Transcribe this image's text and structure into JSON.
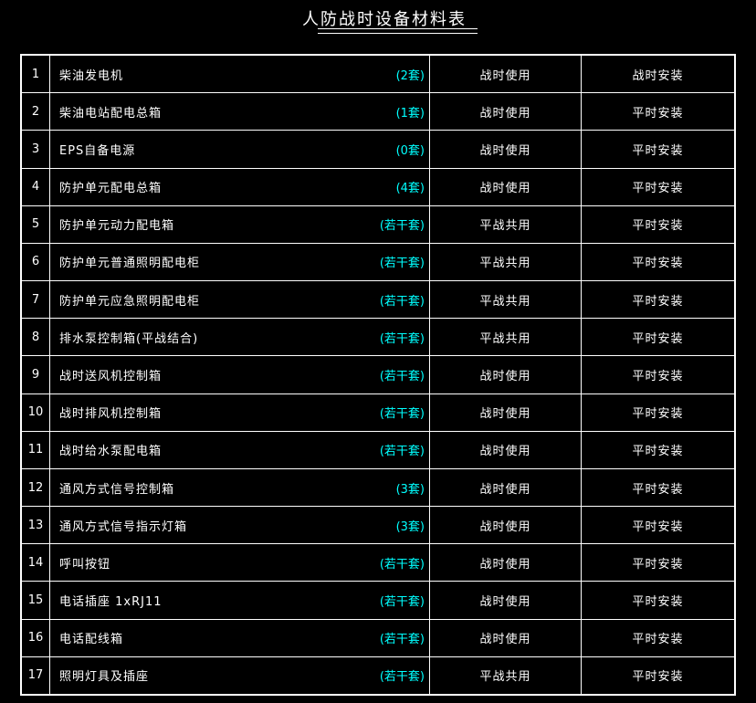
{
  "title": "人防战时设备材料表",
  "colors": {
    "background": "#000000",
    "gridline": "#ffffff",
    "text": "#ffffff",
    "quantity_accent": "#00ffff"
  },
  "table": {
    "rows": [
      {
        "no": "1",
        "name": "柴油发电机",
        "qty": "(2套)",
        "usage": "战时使用",
        "install": "战时安装"
      },
      {
        "no": "2",
        "name": "柴油电站配电总箱",
        "qty": "(1套)",
        "usage": "战时使用",
        "install": "平时安装"
      },
      {
        "no": "3",
        "name": "EPS自备电源",
        "qty": "(0套)",
        "usage": "战时使用",
        "install": "平时安装"
      },
      {
        "no": "4",
        "name": "防护单元配电总箱",
        "qty": "(4套)",
        "usage": "战时使用",
        "install": "平时安装"
      },
      {
        "no": "5",
        "name": "防护单元动力配电箱",
        "qty": "(若干套)",
        "usage": "平战共用",
        "install": "平时安装"
      },
      {
        "no": "6",
        "name": "防护单元普通照明配电柜",
        "qty": "(若干套)",
        "usage": "平战共用",
        "install": "平时安装"
      },
      {
        "no": "7",
        "name": "防护单元应急照明配电柜",
        "qty": "(若干套)",
        "usage": "平战共用",
        "install": "平时安装"
      },
      {
        "no": "8",
        "name": "排水泵控制箱(平战结合)",
        "qty": "(若干套)",
        "usage": "平战共用",
        "install": "平时安装"
      },
      {
        "no": "9",
        "name": "战时送风机控制箱",
        "qty": "(若干套)",
        "usage": "战时使用",
        "install": "平时安装"
      },
      {
        "no": "10",
        "name": "战时排风机控制箱",
        "qty": "(若干套)",
        "usage": "战时使用",
        "install": "平时安装"
      },
      {
        "no": "11",
        "name": "战时给水泵配电箱",
        "qty": "(若干套)",
        "usage": "战时使用",
        "install": "平时安装"
      },
      {
        "no": "12",
        "name": "通风方式信号控制箱",
        "qty": "(3套)",
        "usage": "战时使用",
        "install": "平时安装"
      },
      {
        "no": "13",
        "name": "通风方式信号指示灯箱",
        "qty": "(3套)",
        "usage": "战时使用",
        "install": "平时安装"
      },
      {
        "no": "14",
        "name": "呼叫按钮",
        "qty": "(若干套)",
        "usage": "战时使用",
        "install": "平时安装"
      },
      {
        "no": "15",
        "name": "电话插座 1xRJ11",
        "qty": "(若干套)",
        "usage": "战时使用",
        "install": "平时安装"
      },
      {
        "no": "16",
        "name": "电话配线箱",
        "qty": "(若干套)",
        "usage": "战时使用",
        "install": "平时安装"
      },
      {
        "no": "17",
        "name": "照明灯具及插座",
        "qty": "(若干套)",
        "usage": "平战共用",
        "install": "平时安装"
      }
    ]
  }
}
